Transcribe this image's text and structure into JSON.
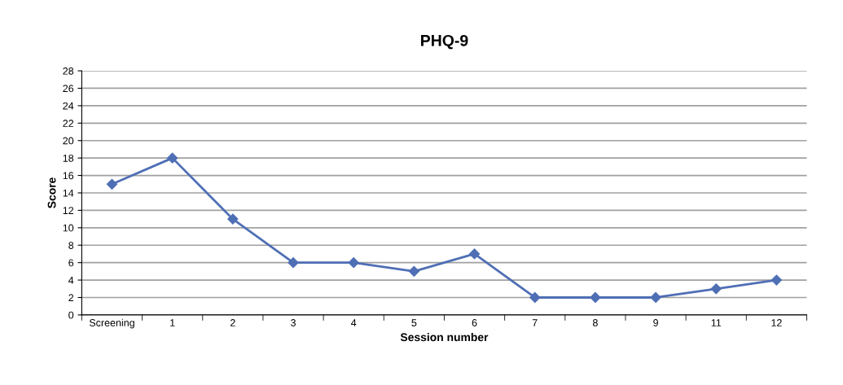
{
  "chart_data": {
    "type": "line",
    "title": "PHQ-9",
    "xlabel": "Session number",
    "ylabel": "Score",
    "categories": [
      "Screening",
      "1",
      "2",
      "3",
      "4",
      "5",
      "6",
      "7",
      "8",
      "9",
      "11",
      "12"
    ],
    "series": [
      {
        "color": "#4f6fb5",
        "values": [
          15,
          18,
          11,
          6,
          6,
          5,
          7,
          2,
          2,
          2,
          3,
          4
        ]
      }
    ],
    "ylim": [
      0,
      28
    ],
    "yticks": [
      0,
      2,
      4,
      6,
      8,
      10,
      12,
      14,
      16,
      18,
      20,
      22,
      24,
      26,
      28
    ],
    "grid": "y",
    "legend": false,
    "marker": "diamond",
    "line_style": "solid"
  }
}
